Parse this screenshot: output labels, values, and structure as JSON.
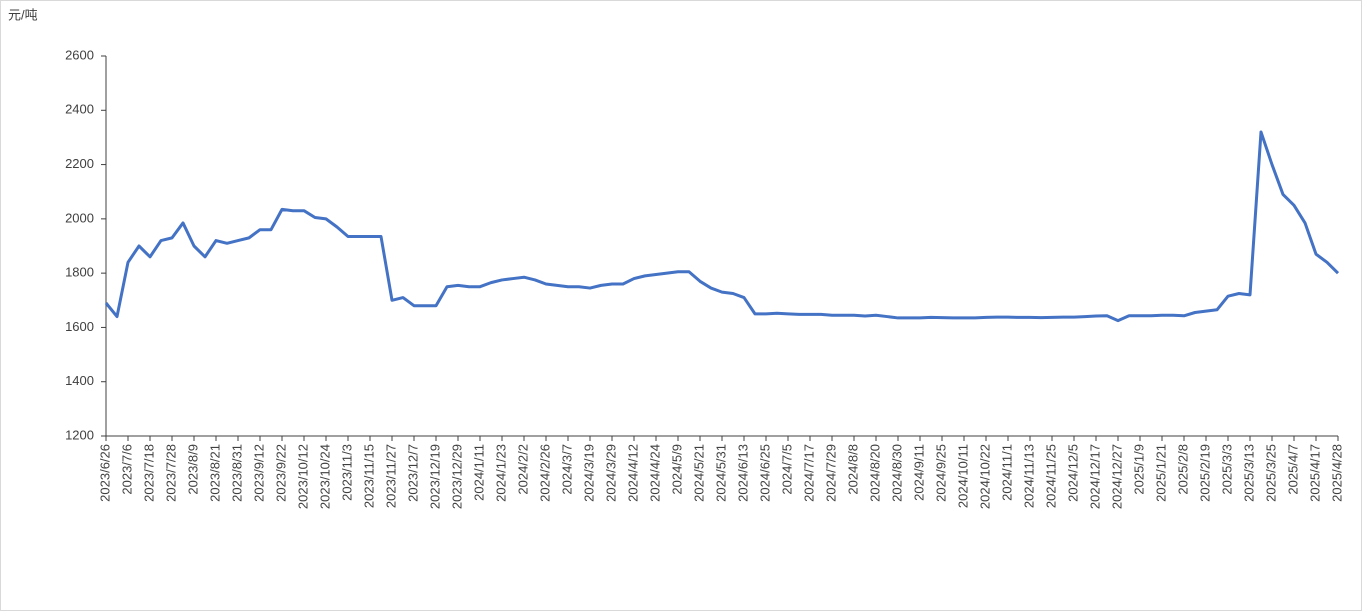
{
  "chart_data": {
    "type": "line",
    "y_label": "元/吨",
    "categories": [
      "2023/6/26",
      null,
      "2023/7/6",
      null,
      "2023/7/18",
      null,
      "2023/7/28",
      null,
      "2023/8/9",
      null,
      "2023/8/21",
      null,
      "2023/8/31",
      null,
      "2023/9/12",
      null,
      "2023/9/22",
      null,
      "2023/10/12",
      null,
      "2023/10/24",
      null,
      "2023/11/3",
      null,
      "2023/11/15",
      null,
      "2023/11/27",
      null,
      "2023/12/7",
      null,
      "2023/12/19",
      null,
      "2023/12/29",
      null,
      "2024/1/11",
      null,
      "2024/1/23",
      null,
      "2024/2/2",
      null,
      "2024/2/26",
      null,
      "2024/3/7",
      null,
      "2024/3/19",
      null,
      "2024/3/29",
      null,
      "2024/4/12",
      null,
      "2024/4/24",
      null,
      "2024/5/9",
      null,
      "2024/5/21",
      null,
      "2024/5/31",
      null,
      "2024/6/13",
      null,
      "2024/6/25",
      null,
      "2024/7/5",
      null,
      "2024/7/17",
      null,
      "2024/7/29",
      null,
      "2024/8/8",
      null,
      "2024/8/20",
      null,
      "2024/8/30",
      null,
      "2024/9/11",
      null,
      "2024/9/25",
      null,
      "2024/10/11",
      null,
      "2024/10/22",
      null,
      "2024/11/1",
      null,
      "2024/11/13",
      null,
      "2024/11/25",
      null,
      "2024/12/5",
      null,
      "2024/12/17",
      null,
      "2024/12/27",
      null,
      "2025/1/9",
      null,
      "2025/1/21",
      null,
      "2025/2/8",
      null,
      "2025/2/19",
      null,
      "2025/3/3",
      null,
      "2025/3/13",
      null,
      "2025/3/25",
      null,
      "2025/4/7",
      null,
      "2025/4/17",
      null,
      "2025/4/28"
    ],
    "values": [
      1690,
      1640,
      1840,
      1900,
      1860,
      1920,
      1930,
      1985,
      1900,
      1860,
      1920,
      1910,
      1920,
      1930,
      1960,
      1960,
      2035,
      2030,
      2030,
      2005,
      2000,
      1970,
      1935,
      1935,
      1935,
      1935,
      1700,
      1710,
      1680,
      1680,
      1680,
      1750,
      1755,
      1750,
      1750,
      1765,
      1775,
      1780,
      1785,
      1775,
      1760,
      1755,
      1750,
      1750,
      1745,
      1755,
      1760,
      1760,
      1780,
      1790,
      1795,
      1800,
      1805,
      1805,
      1770,
      1745,
      1730,
      1725,
      1710,
      1650,
      1650,
      1652,
      1650,
      1648,
      1648,
      1648,
      1645,
      1645,
      1645,
      1642,
      1645,
      1640,
      1635,
      1635,
      1635,
      1637,
      1636,
      1635,
      1635,
      1635,
      1637,
      1638,
      1638,
      1637,
      1637,
      1636,
      1637,
      1638,
      1638,
      1640,
      1642,
      1643,
      1625,
      1643,
      1643,
      1643,
      1645,
      1645,
      1643,
      1655,
      1660,
      1665,
      1715,
      1725,
      1720,
      2320,
      2200,
      2090,
      2050,
      1985,
      1870,
      1840,
      1800
    ],
    "color": "#4472c4",
    "ylim": [
      1200,
      2600
    ],
    "yticks": [
      1200,
      1400,
      1600,
      1800,
      2000,
      2200,
      2400,
      2600
    ],
    "grid": false
  }
}
